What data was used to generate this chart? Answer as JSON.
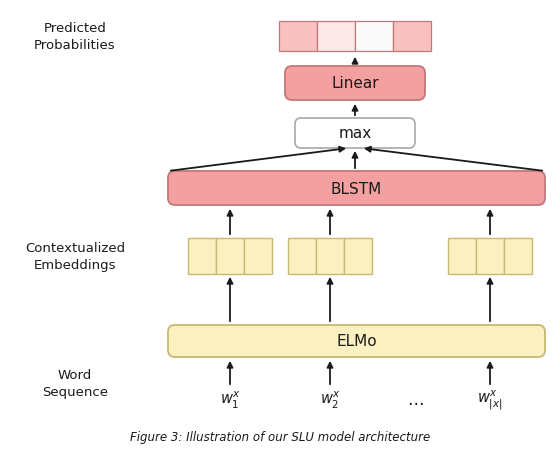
{
  "fig_width": 5.6,
  "fig_height": 4.52,
  "dpi": 100,
  "colors": {
    "pink_fill": "#F4A0A0",
    "pink_border": "#C07878",
    "yellow_fill": "#FAF0C0",
    "yellow_border": "#C8B870",
    "white_fill": "#FFFFFF",
    "white_border": "#A8A8A8",
    "prob_pink1": "#F9C0C0",
    "prob_pink2": "#FDE8E8",
    "prob_pink3": "#FAFAFA",
    "prob_pink4": "#F9C0C0",
    "bg": "#FFFFFF",
    "arrow_color": "#1A1A1A",
    "text_color": "#1A1A1A"
  },
  "predicted_prob_label": "Predicted\nProbabilities",
  "contextualized_label": "Contextualized\nEmbeddings",
  "word_seq_label": "Word\nSequence",
  "caption": "Figure 3: Illustration of our SLU model architecture"
}
